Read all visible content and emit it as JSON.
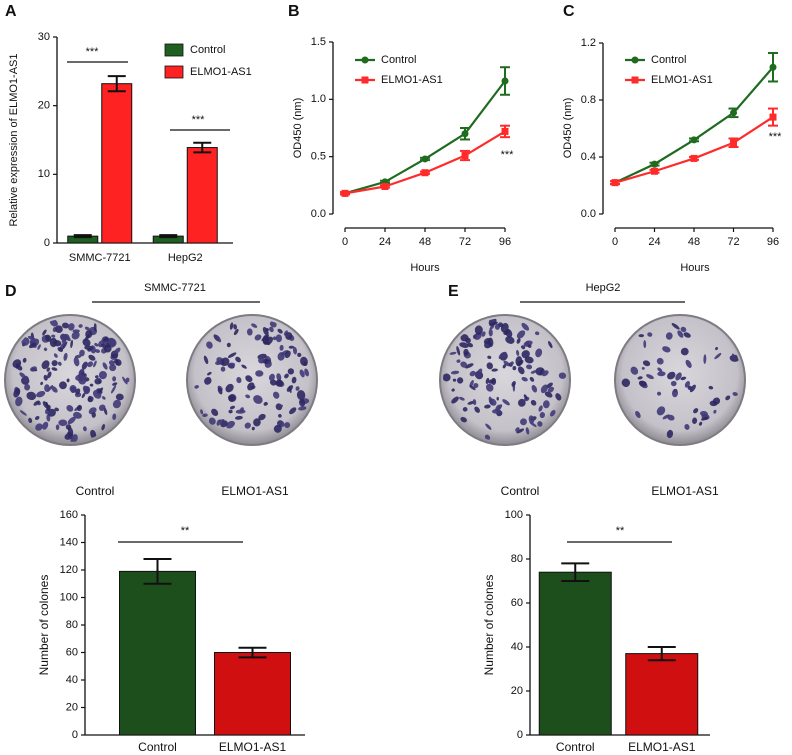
{
  "chart_data": [
    {
      "type": "bar",
      "panel_label": "A",
      "y_label": "Relative expression of ELMO1-AS1",
      "categories": [
        "SMMC-7721",
        "HepG2"
      ],
      "series": [
        {
          "name": "Control",
          "color": "#1f5f1f",
          "values": [
            1,
            1
          ],
          "errors": [
            0.15,
            0.15
          ]
        },
        {
          "name": "ELMO1-AS1",
          "color": "#ff2222",
          "values": [
            23.2,
            13.9
          ],
          "errors": [
            1.1,
            0.7
          ]
        }
      ],
      "ylim": [
        0,
        30
      ],
      "yticks": [
        0,
        10,
        20,
        30
      ],
      "annotations": [
        "***",
        "***"
      ]
    },
    {
      "type": "line",
      "panel_label": "B",
      "x_label": "Hours",
      "y_label": "OD450 (nm)",
      "x": [
        0,
        24,
        48,
        72,
        96
      ],
      "xlim": [
        0,
        96
      ],
      "xticks": [
        0,
        24,
        48,
        72,
        96
      ],
      "series": [
        {
          "name": "Control",
          "color": "#1f6b1f",
          "values": [
            0.18,
            0.28,
            0.48,
            0.7,
            1.16
          ],
          "errors": [
            0.01,
            0.01,
            0.01,
            0.05,
            0.12
          ]
        },
        {
          "name": "ELMO1-AS1",
          "color": "#ff2a2a",
          "values": [
            0.18,
            0.24,
            0.36,
            0.51,
            0.72
          ],
          "errors": [
            0.01,
            0.01,
            0.01,
            0.04,
            0.05
          ]
        }
      ],
      "ylim": [
        0,
        1.5
      ],
      "yticks": [
        {
          "value": 0,
          "label": "0.0"
        },
        0.5,
        {
          "value": 1,
          "label": "1.0"
        },
        1.5
      ],
      "annotations": [
        "***"
      ]
    },
    {
      "type": "line",
      "panel_label": "C",
      "x_label": "Hours",
      "y_label": "OD450 (nm)",
      "x": [
        0,
        24,
        48,
        72,
        96
      ],
      "xlim": [
        0,
        96
      ],
      "xticks": [
        0,
        24,
        48,
        72,
        96
      ],
      "series": [
        {
          "name": "Control",
          "color": "#1f6b1f",
          "values": [
            0.22,
            0.35,
            0.52,
            0.71,
            1.03
          ],
          "errors": [
            0.01,
            0.01,
            0.01,
            0.03,
            0.1
          ]
        },
        {
          "name": "ELMO1-AS1",
          "color": "#ff2a2a",
          "values": [
            0.22,
            0.3,
            0.39,
            0.5,
            0.68
          ],
          "errors": [
            0.01,
            0.01,
            0.01,
            0.03,
            0.06
          ]
        }
      ],
      "ylim": [
        0,
        1.2
      ],
      "yticks": [
        {
          "value": 0,
          "label": "0.0"
        },
        0.4,
        0.8,
        1.2
      ],
      "annotations": [
        "***"
      ]
    },
    {
      "type": "bar",
      "panel_label": "D",
      "group_label": "SMMC-7721",
      "plate_labels": [
        "Control",
        "ELMO1-AS1"
      ],
      "y_label": "Number of colones",
      "categories": [
        "Control",
        "ELMO1-AS1"
      ],
      "values": [
        119,
        60
      ],
      "errors": [
        9,
        3.5
      ],
      "colors": [
        "#1d4f1d",
        "#d01010"
      ],
      "ylim": [
        0,
        160
      ],
      "yticks": [
        0,
        20,
        40,
        60,
        80,
        100,
        120,
        140,
        160
      ],
      "annotations": [
        "**"
      ]
    },
    {
      "type": "bar",
      "panel_label": "E",
      "group_label": "HepG2",
      "plate_labels": [
        "Control",
        "ELMO1-AS1"
      ],
      "y_label": "Number of colones",
      "categories": [
        "Control",
        "ELMO1-AS1"
      ],
      "values": [
        74,
        37
      ],
      "errors": [
        4,
        3
      ],
      "colors": [
        "#1d4f1d",
        "#d01010"
      ],
      "ylim": [
        0,
        100
      ],
      "yticks": [
        0,
        20,
        40,
        60,
        80,
        100
      ],
      "annotations": [
        "**"
      ]
    }
  ]
}
